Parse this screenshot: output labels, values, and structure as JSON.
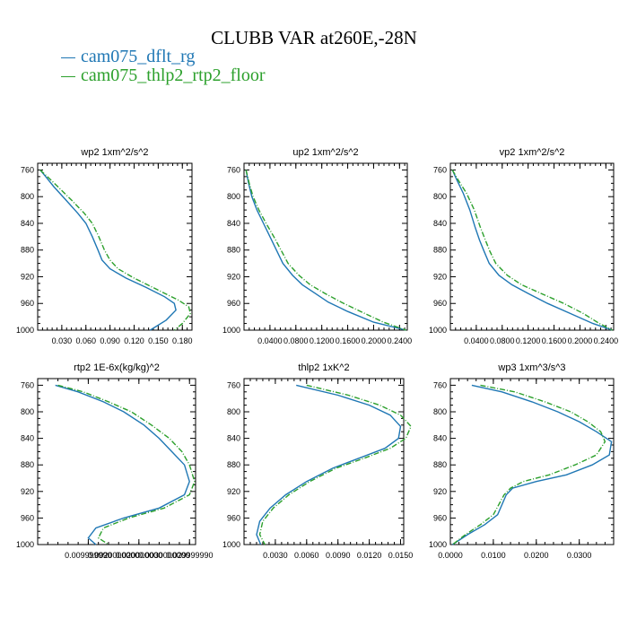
{
  "title": "CLUBB VAR at260E,-28N",
  "legend": [
    {
      "label": "cam075_dflt_rg",
      "color": "#1f77b4"
    },
    {
      "label": "cam075_thlp2_rtp2_floor",
      "color": "#2ca02c"
    }
  ],
  "chart_data": [
    {
      "type": "line",
      "title": "wp2   1xm^2/s^2",
      "xlim": [
        0.0,
        0.192
      ],
      "ylim": [
        1000,
        750
      ],
      "y_inverted": true,
      "xticks": [
        0.03,
        0.06,
        0.09,
        0.12,
        0.15,
        0.18
      ],
      "xtick_labels": [
        "0.030",
        "0.060",
        "0.090",
        "0.120",
        "0.150",
        "0.180"
      ],
      "yticks": [
        760,
        800,
        840,
        880,
        920,
        960,
        1000
      ],
      "series": [
        {
          "name": "cam075_dflt_rg",
          "x": [
            0.003,
            0.01,
            0.02,
            0.035,
            0.05,
            0.06,
            0.068,
            0.075,
            0.08,
            0.09,
            0.11,
            0.135,
            0.158,
            0.17,
            0.172,
            0.16,
            0.14
          ],
          "y": [
            760,
            770,
            785,
            805,
            825,
            840,
            860,
            880,
            895,
            908,
            922,
            936,
            950,
            960,
            970,
            985,
            1000
          ]
        },
        {
          "name": "cam075_thlp2_rtp2_floor",
          "x": [
            0.003,
            0.012,
            0.025,
            0.042,
            0.058,
            0.068,
            0.076,
            0.083,
            0.09,
            0.1,
            0.12,
            0.15,
            0.175,
            0.188,
            0.19,
            0.18,
            0.17
          ],
          "y": [
            760,
            770,
            785,
            805,
            825,
            840,
            860,
            880,
            895,
            908,
            922,
            940,
            955,
            965,
            975,
            990,
            1000
          ]
        }
      ]
    },
    {
      "type": "line",
      "title": "up2   1xm^2/s^2",
      "xlim": [
        0.0,
        0.252
      ],
      "ylim": [
        1000,
        750
      ],
      "y_inverted": true,
      "xticks": [
        0.04,
        0.08,
        0.12,
        0.16,
        0.2,
        0.24
      ],
      "xtick_labels": [
        "0.0400",
        "0.0800",
        "0.1200",
        "0.1600",
        "0.2000",
        "0.2400"
      ],
      "yticks": [
        760,
        800,
        840,
        880,
        920,
        960,
        1000
      ],
      "series": [
        {
          "name": "cam075_dflt_rg",
          "x": [
            0.003,
            0.007,
            0.012,
            0.02,
            0.03,
            0.04,
            0.05,
            0.06,
            0.075,
            0.09,
            0.11,
            0.13,
            0.16,
            0.2,
            0.25
          ],
          "y": [
            760,
            780,
            800,
            820,
            840,
            860,
            880,
            900,
            918,
            932,
            945,
            958,
            972,
            988,
            1000
          ]
        },
        {
          "name": "cam075_thlp2_rtp2_floor",
          "x": [
            0.003,
            0.008,
            0.014,
            0.023,
            0.034,
            0.046,
            0.057,
            0.068,
            0.085,
            0.102,
            0.125,
            0.15,
            0.18,
            0.215,
            0.25
          ],
          "y": [
            760,
            780,
            800,
            820,
            840,
            860,
            880,
            900,
            918,
            932,
            945,
            958,
            972,
            988,
            1000
          ]
        }
      ]
    },
    {
      "type": "line",
      "title": "vp2   1xm^2/s^2",
      "xlim": [
        0.0,
        0.252
      ],
      "ylim": [
        1000,
        750
      ],
      "y_inverted": true,
      "xticks": [
        0.04,
        0.08,
        0.12,
        0.16,
        0.2,
        0.24
      ],
      "xtick_labels": [
        "0.0400",
        "0.0800",
        "0.1200",
        "0.1600",
        "0.2000",
        "0.2400"
      ],
      "yticks": [
        760,
        800,
        840,
        880,
        920,
        960,
        1000
      ],
      "series": [
        {
          "name": "cam075_dflt_rg",
          "x": [
            0.003,
            0.01,
            0.02,
            0.03,
            0.038,
            0.045,
            0.052,
            0.06,
            0.075,
            0.095,
            0.12,
            0.15,
            0.185,
            0.22,
            0.25
          ],
          "y": [
            760,
            775,
            795,
            820,
            845,
            865,
            882,
            900,
            918,
            932,
            945,
            960,
            975,
            990,
            1000
          ]
        },
        {
          "name": "cam075_thlp2_rtp2_floor",
          "x": [
            0.003,
            0.012,
            0.025,
            0.037,
            0.046,
            0.054,
            0.061,
            0.07,
            0.088,
            0.11,
            0.14,
            0.175,
            0.205,
            0.23,
            0.25
          ],
          "y": [
            760,
            775,
            795,
            820,
            845,
            865,
            882,
            900,
            918,
            932,
            945,
            960,
            975,
            990,
            1000
          ]
        }
      ]
    },
    {
      "type": "line",
      "title": "rtp2   1E-6x(kg/kg)^2",
      "xlim": [
        0.0,
        0.0312
      ],
      "ylim": [
        1000,
        750
      ],
      "y_inverted": true,
      "xticks": [
        0.01,
        0.02,
        0.03
      ],
      "xtick_labels": [
        "0.009999990",
        "0.020000000",
        "0.029999990"
      ],
      "xtick_labels_overlay": [
        "0.0020000000",
        "0.0030000000"
      ],
      "yticks": [
        760,
        800,
        840,
        880,
        920,
        960,
        1000
      ],
      "series": [
        {
          "name": "cam075_dflt_rg",
          "x": [
            0.0035,
            0.008,
            0.013,
            0.017,
            0.021,
            0.024,
            0.0265,
            0.029,
            0.03,
            0.029,
            0.024,
            0.017,
            0.0115,
            0.01,
            0.0115
          ],
          "y": [
            760,
            770,
            785,
            800,
            820,
            840,
            860,
            880,
            905,
            925,
            945,
            960,
            975,
            990,
            1000
          ]
        },
        {
          "name": "cam075_thlp2_rtp2_floor",
          "x": [
            0.004,
            0.009,
            0.014,
            0.0185,
            0.0225,
            0.026,
            0.0285,
            0.03,
            0.031,
            0.03,
            0.025,
            0.018,
            0.013,
            0.012,
            0.014
          ],
          "y": [
            760,
            770,
            785,
            800,
            820,
            840,
            860,
            880,
            905,
            925,
            945,
            960,
            975,
            990,
            1000
          ]
        }
      ]
    },
    {
      "type": "line",
      "title": "thlp2   1xK^2",
      "xlim": [
        0.0,
        0.0153
      ],
      "ylim": [
        1000,
        750
      ],
      "y_inverted": true,
      "xticks": [
        0.003,
        0.006,
        0.009,
        0.012,
        0.015
      ],
      "xtick_labels": [
        "0.0030",
        "0.0060",
        "0.0090",
        "0.0120",
        "0.0150"
      ],
      "yticks": [
        760,
        800,
        840,
        880,
        920,
        960,
        1000
      ],
      "series": [
        {
          "name": "cam075_dflt_rg",
          "x": [
            0.005,
            0.009,
            0.012,
            0.014,
            0.015,
            0.0148,
            0.0135,
            0.011,
            0.0085,
            0.006,
            0.004,
            0.0025,
            0.0015,
            0.0012,
            0.0016
          ],
          "y": [
            760,
            775,
            790,
            805,
            822,
            840,
            855,
            870,
            885,
            905,
            925,
            945,
            965,
            985,
            1000
          ]
        },
        {
          "name": "cam075_thlp2_rtp2_floor",
          "x": [
            0.006,
            0.01,
            0.013,
            0.015,
            0.016,
            0.0155,
            0.014,
            0.0115,
            0.0088,
            0.0063,
            0.0043,
            0.0028,
            0.0018,
            0.0015,
            0.002
          ],
          "y": [
            760,
            775,
            790,
            805,
            822,
            840,
            855,
            870,
            885,
            905,
            925,
            945,
            965,
            985,
            1000
          ]
        }
      ]
    },
    {
      "type": "line",
      "title": "wp3   1xm^3/s^3",
      "xlim": [
        0.0,
        0.038
      ],
      "ylim": [
        1000,
        750
      ],
      "y_inverted": true,
      "xticks": [
        0.0,
        0.01,
        0.02,
        0.03
      ],
      "xtick_labels": [
        "0.0000",
        "0.0100",
        "0.0200",
        "0.0300"
      ],
      "yticks": [
        760,
        800,
        840,
        880,
        920,
        960,
        1000
      ],
      "series": [
        {
          "name": "cam075_dflt_rg",
          "x": [
            0.005,
            0.012,
            0.019,
            0.025,
            0.03,
            0.034,
            0.0375,
            0.037,
            0.033,
            0.027,
            0.02,
            0.0145,
            0.013,
            0.011,
            0.008,
            0.004,
            0.0005
          ],
          "y": [
            760,
            770,
            785,
            800,
            815,
            830,
            845,
            865,
            880,
            895,
            905,
            915,
            925,
            955,
            970,
            985,
            1000
          ]
        },
        {
          "name": "cam075_thlp2_rtp2_floor",
          "x": [
            0.007,
            0.015,
            0.022,
            0.028,
            0.032,
            0.035,
            0.036,
            0.034,
            0.029,
            0.023,
            0.017,
            0.014,
            0.0125,
            0.01,
            0.007,
            0.0035,
            0.0005
          ],
          "y": [
            760,
            770,
            785,
            800,
            815,
            830,
            845,
            865,
            880,
            895,
            905,
            915,
            925,
            955,
            970,
            985,
            1000
          ]
        }
      ]
    }
  ]
}
